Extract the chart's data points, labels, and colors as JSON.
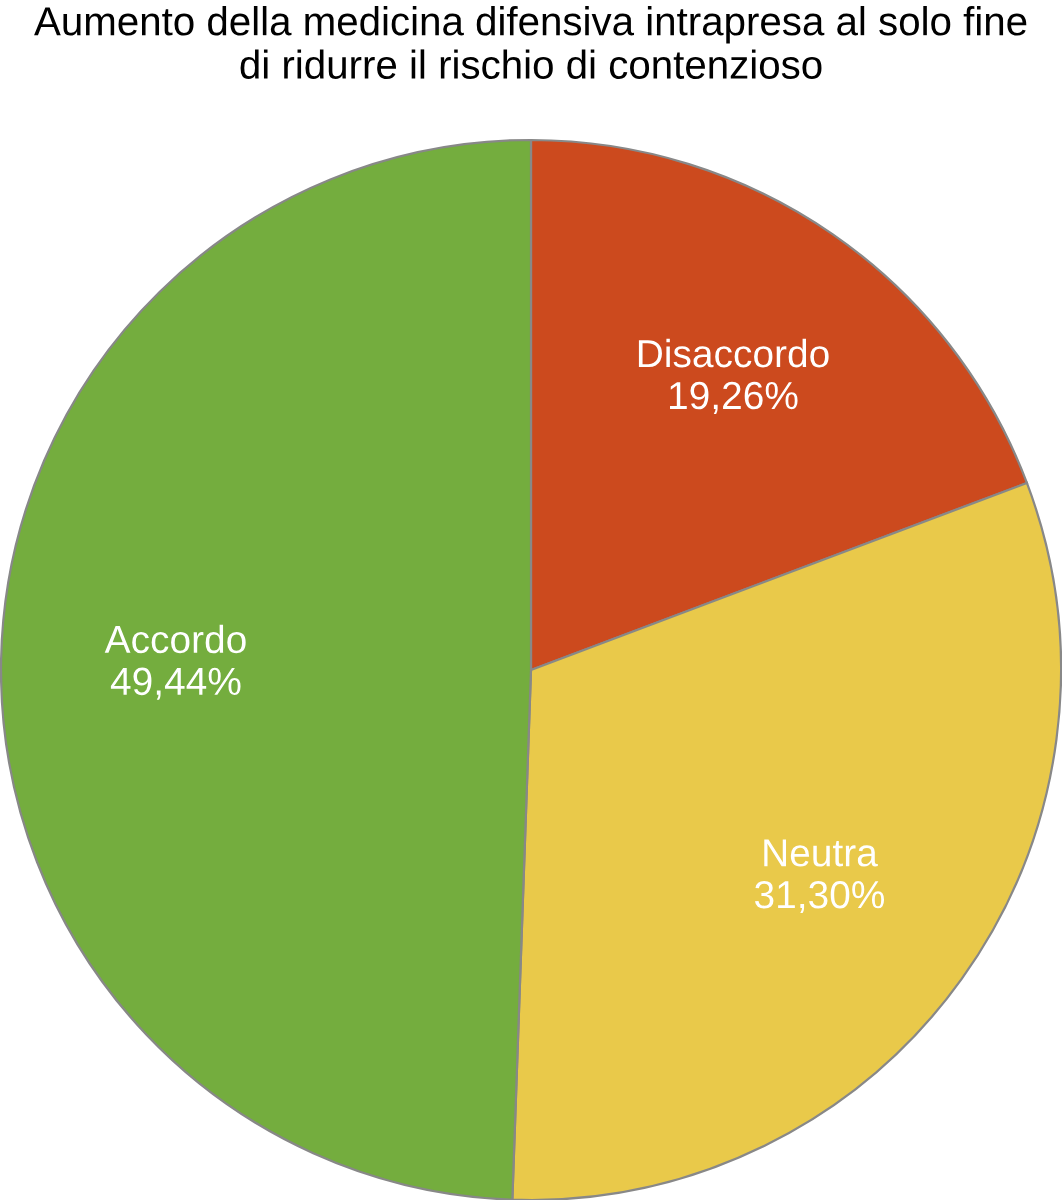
{
  "chart_data": {
    "type": "pie",
    "title": "Aumento della medicina difensiva intrapresa al solo fine\ndi ridurre il rischio di contenzioso",
    "categories": [
      "Disaccordo",
      "Neutra",
      "Accordo"
    ],
    "values": [
      19.26,
      31.3,
      49.44
    ],
    "colors": [
      "#cc4a1e",
      "#e9c94a",
      "#74ad3e"
    ],
    "value_labels": [
      "19,26%",
      "31,30%",
      "49,44%"
    ]
  }
}
